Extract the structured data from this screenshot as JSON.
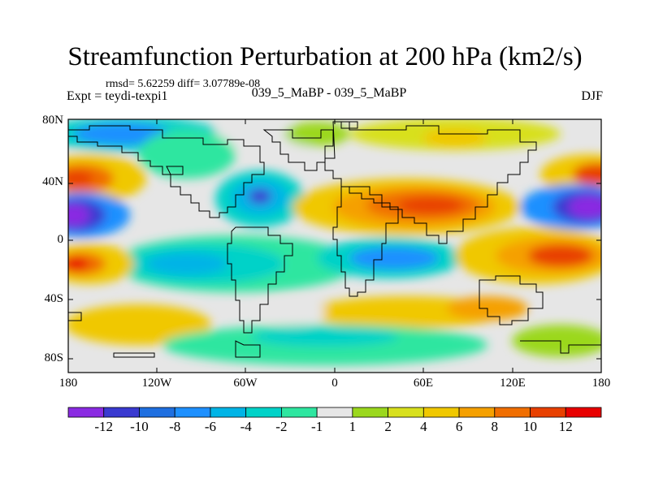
{
  "title": "Streamfunction Perturbation at 200 hPa (km2/s)",
  "stats": "rmsd= 5.62259 diff= 3.07789e-08",
  "experiment": "Expt = teydi-texpi1",
  "experiment_name": "039_5_MaBP - 039_5_MaBP",
  "season": "DJF",
  "lat_labels": [
    "80N",
    "40N",
    "0",
    "40S",
    "80S"
  ],
  "lon_labels": [
    "180",
    "120W",
    "60W",
    "0",
    "60E",
    "120E",
    "180"
  ],
  "colorbar": {
    "labels": [
      "-12",
      "-10",
      "-8",
      "-6",
      "-4",
      "-2",
      "-1",
      "1",
      "2",
      "4",
      "6",
      "8",
      "10",
      "12"
    ],
    "colors": [
      "#8a2be2",
      "#3a3ad0",
      "#1f6fe0",
      "#1e90ff",
      "#00b4e6",
      "#00d2c8",
      "#2ee6a0",
      "#e6e6e6",
      "#9bd81e",
      "#d8e01e",
      "#f0c800",
      "#f5a000",
      "#f06e00",
      "#e84000",
      "#e80000"
    ]
  },
  "map_colors": {
    "land_outline": "#000000",
    "background": "#e6e6e6"
  }
}
